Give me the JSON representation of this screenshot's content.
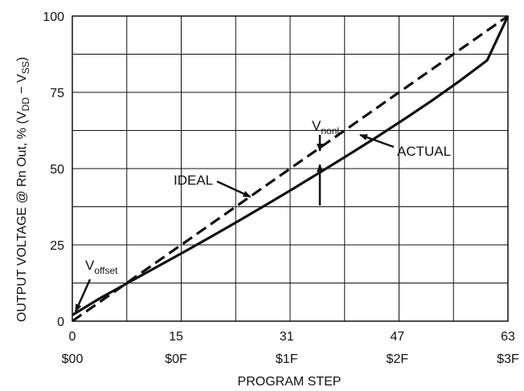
{
  "chart_data": {
    "type": "line",
    "xlabel": "PROGRAM STEP",
    "ylabel": "OUTPUT VOLTAGE @ Rn Out, % (V",
    "ylabel_sub1": "DD",
    "ylabel_mid": " − V",
    "ylabel_sub2": "SS",
    "ylabel_end": ")",
    "xlim": [
      0,
      63
    ],
    "ylim": [
      0,
      100
    ],
    "x_ticks": [
      {
        "value": 0,
        "label": "0",
        "hex": "$00"
      },
      {
        "value": 15,
        "label": "15",
        "hex": "$0F"
      },
      {
        "value": 31,
        "label": "31",
        "hex": "$1F"
      },
      {
        "value": 47,
        "label": "47",
        "hex": "$2F"
      },
      {
        "value": 63,
        "label": "63",
        "hex": "$3F"
      }
    ],
    "y_ticks": [
      {
        "value": 0,
        "label": "0"
      },
      {
        "value": 25,
        "label": "25"
      },
      {
        "value": 50,
        "label": "50"
      },
      {
        "value": 75,
        "label": "75"
      },
      {
        "value": 100,
        "label": "100"
      }
    ],
    "grid": true,
    "series": [
      {
        "name": "IDEAL",
        "style": "dashed",
        "x": [
          0,
          63
        ],
        "y": [
          0,
          100
        ]
      },
      {
        "name": "ACTUAL",
        "style": "solid",
        "x": [
          0,
          4,
          8,
          12,
          16,
          20,
          24,
          28,
          32,
          36,
          40,
          44,
          48,
          52,
          56,
          60,
          63
        ],
        "y": [
          2,
          7.5,
          12.5,
          17.5,
          22.5,
          27.6,
          32.8,
          38.1,
          43.5,
          49,
          54.6,
          60.3,
          66.2,
          72.3,
          78.7,
          85.5,
          100
        ]
      }
    ],
    "annotations": {
      "ideal": "IDEAL",
      "actual": "ACTUAL",
      "vnonl_main": "V",
      "vnonl_sub": "nonl",
      "voffset_main": "V",
      "voffset_sub": "offset"
    }
  }
}
